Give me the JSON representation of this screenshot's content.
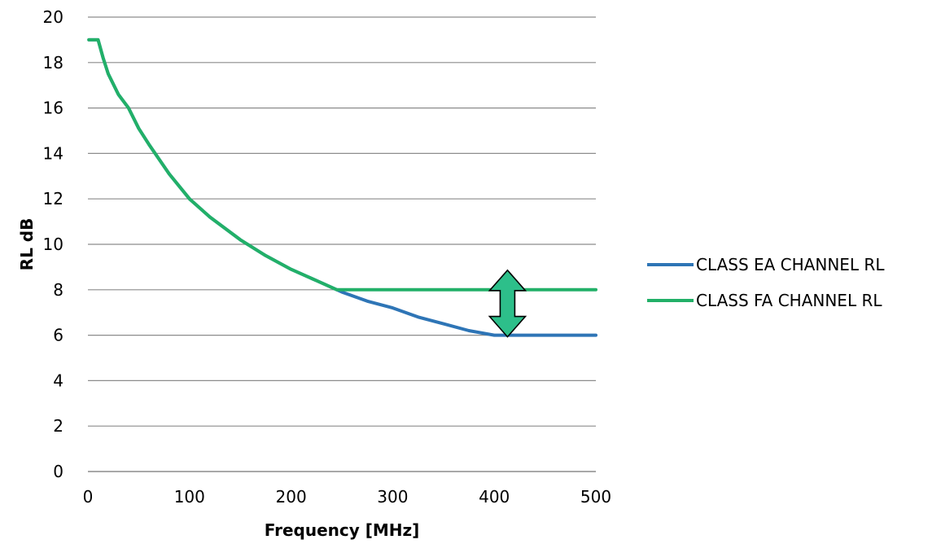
{
  "chart_data": {
    "type": "line",
    "title": "",
    "xlabel": "Frequency [MHz]",
    "ylabel": "RL dB",
    "xlim": [
      0,
      500
    ],
    "ylim": [
      0,
      20
    ],
    "x_ticks": [
      "0",
      "100",
      "200",
      "300",
      "400",
      "500"
    ],
    "y_ticks": [
      "0",
      "2",
      "4",
      "6",
      "8",
      "10",
      "12",
      "14",
      "16",
      "18",
      "20"
    ],
    "grid": "horizontal",
    "legend_position": "right",
    "series": [
      {
        "name": "CLASS EA CHANNEL RL",
        "color": "#2e75b6",
        "x": [
          1,
          10,
          15,
          20,
          30,
          40,
          50,
          60,
          80,
          100,
          120,
          150,
          175,
          200,
          225,
          250,
          275,
          300,
          325,
          350,
          375,
          400,
          450,
          500
        ],
        "y": [
          19,
          19,
          18.2,
          17.5,
          16.6,
          16.0,
          15.1,
          14.4,
          13.1,
          12.0,
          11.2,
          10.2,
          9.5,
          8.9,
          8.4,
          7.9,
          7.5,
          7.2,
          6.8,
          6.5,
          6.2,
          6.0,
          6.0,
          6.0
        ]
      },
      {
        "name": "CLASS FA CHANNEL RL",
        "color": "#22b068",
        "x": [
          1,
          10,
          15,
          20,
          30,
          40,
          50,
          60,
          80,
          100,
          120,
          150,
          175,
          200,
          225,
          245,
          300,
          400,
          500
        ],
        "y": [
          19,
          19,
          18.2,
          17.5,
          16.6,
          16.0,
          15.1,
          14.4,
          13.1,
          12.0,
          11.2,
          10.2,
          9.5,
          8.9,
          8.4,
          8.0,
          8.0,
          8.0,
          8.0
        ]
      }
    ],
    "annotations": [
      {
        "type": "double-arrow",
        "x": 413,
        "y_from": 6,
        "y_to": 8,
        "color": "#2dbf8a"
      }
    ]
  }
}
